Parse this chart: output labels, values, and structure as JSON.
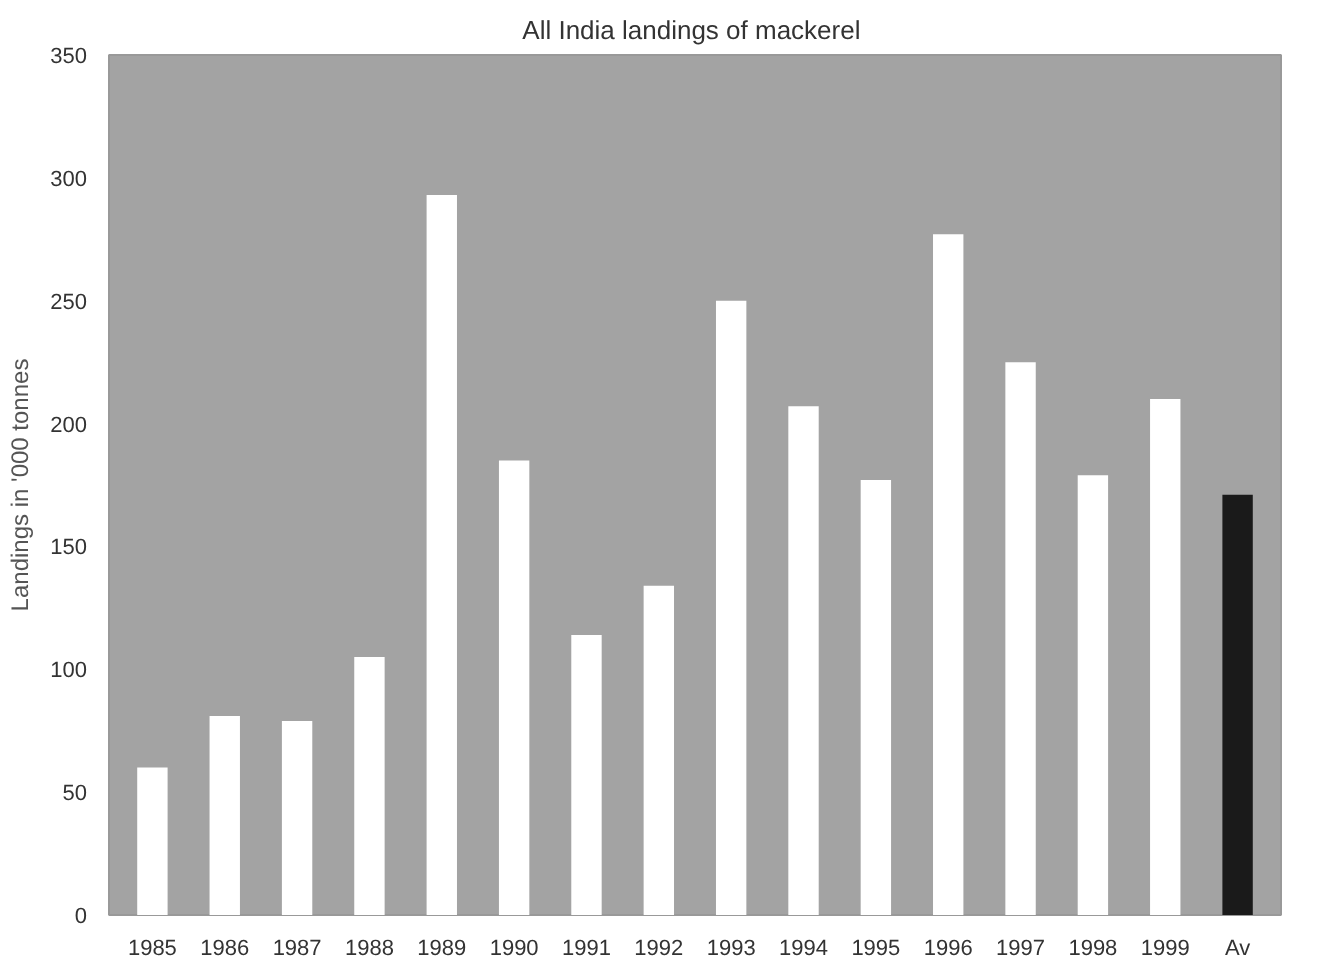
{
  "chart_data": {
    "type": "bar",
    "title": "All India landings  of mackerel",
    "ylabel": "Landings in '000 tonnes",
    "categories": [
      "1985",
      "1986",
      "1987",
      "1988",
      "1989",
      "1990",
      "1991",
      "1992",
      "1993",
      "1994",
      "1995",
      "1996",
      "1997",
      "1998",
      "1999",
      "Av"
    ],
    "values": [
      60,
      81,
      79,
      105,
      293,
      185,
      114,
      134,
      250,
      207,
      177,
      277,
      225,
      179,
      210,
      171
    ],
    "colors": [
      "#ffffff",
      "#ffffff",
      "#ffffff",
      "#ffffff",
      "#ffffff",
      "#ffffff",
      "#ffffff",
      "#ffffff",
      "#ffffff",
      "#ffffff",
      "#ffffff",
      "#ffffff",
      "#ffffff",
      "#ffffff",
      "#ffffff",
      "#1a1a1a"
    ],
    "ylim": [
      0,
      350
    ],
    "yticks": [
      0,
      50,
      100,
      150,
      200,
      250,
      300,
      350
    ],
    "grid": false
  }
}
